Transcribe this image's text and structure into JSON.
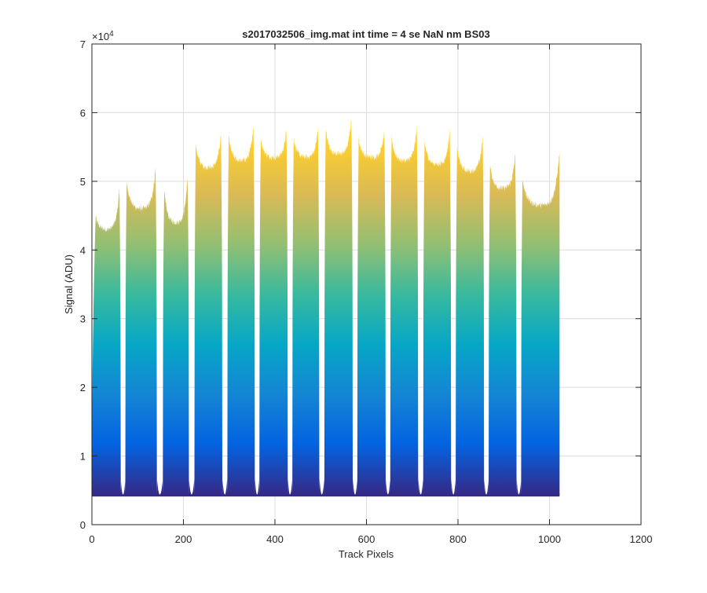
{
  "chart_data": {
    "type": "area",
    "title": "s2017032506_img.mat int time = 4 se  NaN nm BS03",
    "xlabel": "Track Pixels",
    "ylabel": "Signal (ADU)",
    "xlim": [
      0,
      1200
    ],
    "ylim": [
      0,
      70000
    ],
    "y_exponent_label": "×10",
    "y_exponent_power": "4",
    "xticks": [
      0,
      200,
      400,
      600,
      800,
      1000,
      1200
    ],
    "xtick_labels": [
      "0",
      "200",
      "400",
      "600",
      "800",
      "1000",
      "1200"
    ],
    "yticks": [
      0,
      10000,
      20000,
      30000,
      40000,
      50000,
      60000,
      70000
    ],
    "ytick_labels": [
      "0",
      "1",
      "2",
      "3",
      "4",
      "5",
      "6",
      "7"
    ],
    "grid": true,
    "colormap": "parula",
    "colormap_stops": [
      "#352a87",
      "#0363e1",
      "#1485d4",
      "#06a7c6",
      "#38b99e",
      "#92bf73",
      "#d9ba56",
      "#fcce2e",
      "#f9fb0e"
    ],
    "baseline": 4400,
    "x_end": 1022,
    "segments": [
      {
        "start": 0,
        "end": 63,
        "min": 43000,
        "peak": 51500
      },
      {
        "start": 73,
        "end": 142,
        "min": 46000,
        "peak": 54500
      },
      {
        "start": 155,
        "end": 212,
        "min": 44000,
        "peak": 54500
      },
      {
        "start": 224,
        "end": 285,
        "min": 52000,
        "peak": 59500
      },
      {
        "start": 296,
        "end": 356,
        "min": 53000,
        "peak": 61000
      },
      {
        "start": 366,
        "end": 428,
        "min": 53500,
        "peak": 59500
      },
      {
        "start": 438,
        "end": 497,
        "min": 53500,
        "peak": 60000
      },
      {
        "start": 508,
        "end": 570,
        "min": 54000,
        "peak": 62000
      },
      {
        "start": 580,
        "end": 642,
        "min": 53500,
        "peak": 59500
      },
      {
        "start": 652,
        "end": 713,
        "min": 53000,
        "peak": 60500
      },
      {
        "start": 724,
        "end": 785,
        "min": 52500,
        "peak": 60000
      },
      {
        "start": 795,
        "end": 857,
        "min": 51500,
        "peak": 59000
      },
      {
        "start": 867,
        "end": 928,
        "min": 49000,
        "peak": 56500
      },
      {
        "start": 938,
        "end": 1022,
        "min": 46500,
        "peak": 54000
      }
    ]
  }
}
